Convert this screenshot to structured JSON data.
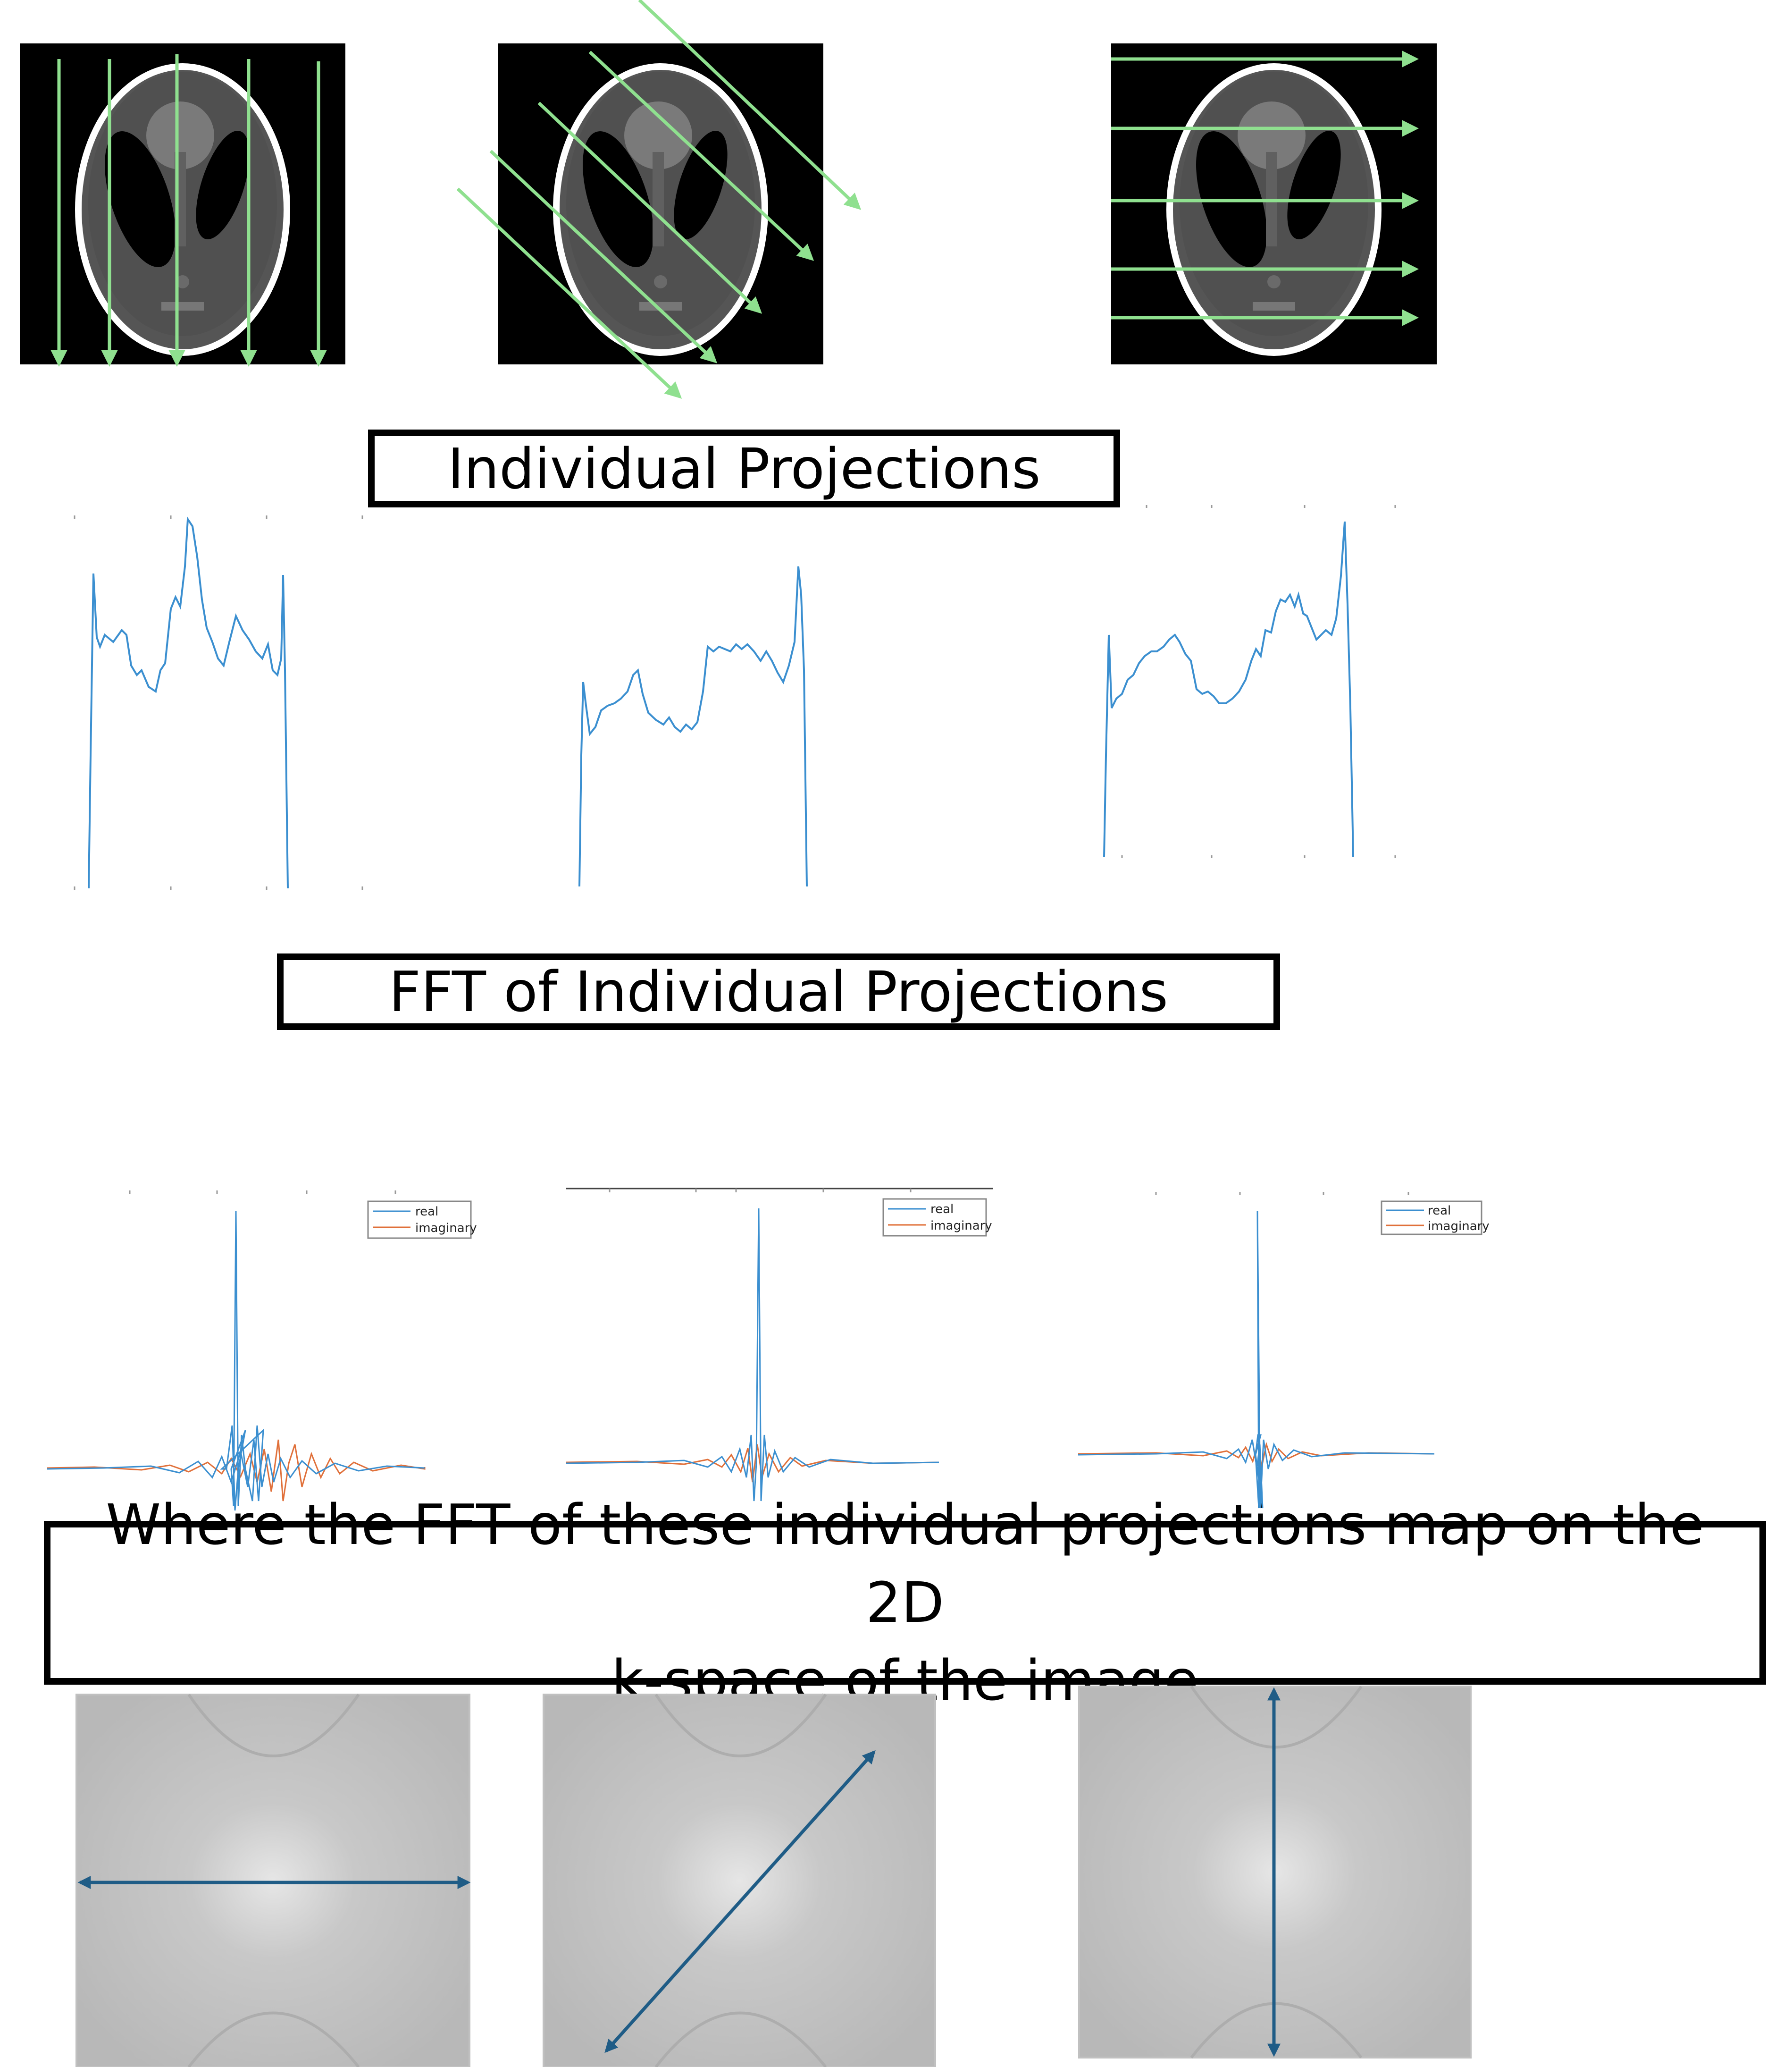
{
  "labels": {
    "individual_projections": "Individual Projections",
    "fft_individual_projections": "FFT of Individual Projections",
    "kspace_mapping": "Where the FFT of these individual projections map on the 2D\nk-space of the image"
  },
  "legend": {
    "real": "real",
    "imaginary": "imaginary"
  },
  "colors": {
    "ray_arrow": "#8fe08f",
    "projection_line": "#3b8fd0",
    "real_line": "#3b8fd0",
    "imaginary_line": "#e0703a",
    "kspace_arrow": "#1f5c86",
    "phantom_bg": "#000000",
    "kspace_bg": "#bdbdbd"
  },
  "phantoms": [
    {
      "name": "vertical-projection-phantom",
      "ray_direction": "vertical"
    },
    {
      "name": "diagonal-projection-phantom",
      "ray_direction": "diagonal"
    },
    {
      "name": "horizontal-projection-phantom",
      "ray_direction": "horizontal"
    }
  ],
  "kspace": [
    {
      "name": "kspace-horizontal",
      "line_orientation": "horizontal"
    },
    {
      "name": "kspace-diagonal",
      "line_orientation": "diagonal"
    },
    {
      "name": "kspace-vertical",
      "line_orientation": "vertical"
    }
  ]
}
